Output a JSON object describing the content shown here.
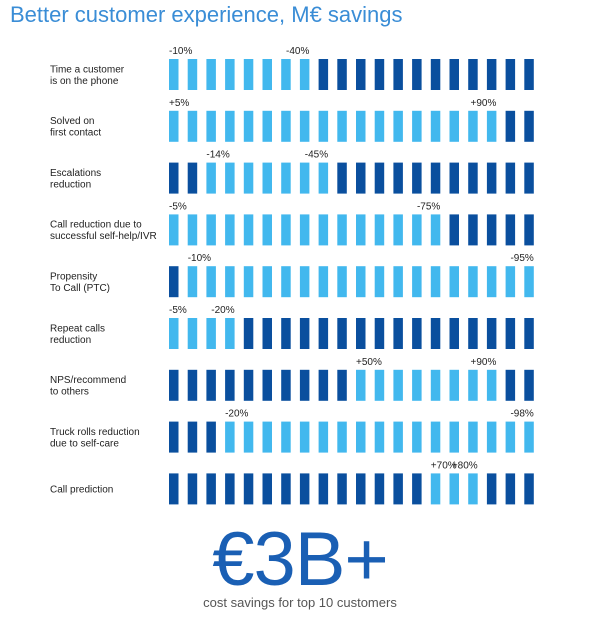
{
  "title": "Better customer experience, M€ savings",
  "highlight": {
    "value": "€3B+",
    "caption": "cost savings for top 10 customers"
  },
  "colors": {
    "dark": "#0a4f9e",
    "light": "#42b8ee",
    "label": "#222222"
  },
  "chart_data": {
    "type": "bar",
    "segments_per_row": 20,
    "rows": [
      {
        "label": [
          "Time a customer",
          "is on the phone"
        ],
        "range_labels": [
          "-10%",
          "-40%"
        ],
        "light_start": 0,
        "light_end": 8,
        "light_fraction": 0.4
      },
      {
        "label": [
          "Solved on",
          "first contact"
        ],
        "range_labels": [
          "+5%",
          "+90%"
        ],
        "light_start": 0,
        "light_end": 18,
        "light_fraction": 0.9
      },
      {
        "label": [
          "Escalations",
          "reduction"
        ],
        "range_labels": [
          "-14%",
          "-45%"
        ],
        "light_start": 2,
        "light_end": 9,
        "light_fraction": 0.35
      },
      {
        "label": [
          "Call reduction due to",
          "successful self-help/IVR"
        ],
        "range_labels": [
          "-5%",
          "-75%"
        ],
        "light_start": 0,
        "light_end": 15,
        "light_fraction": 0.75
      },
      {
        "label": [
          "Propensity",
          "To Call (PTC)"
        ],
        "range_labels": [
          "-10%",
          "-95%"
        ],
        "light_start": 1,
        "light_end": 20,
        "light_fraction": 0.95
      },
      {
        "label": [
          "Repeat calls",
          "reduction"
        ],
        "range_labels": [
          "-5%",
          "-20%"
        ],
        "light_start": 0,
        "light_end": 4,
        "light_fraction": 0.2
      },
      {
        "label": [
          "NPS/recommend",
          "to others"
        ],
        "range_labels": [
          "+50%",
          "+90%"
        ],
        "light_start": 10,
        "light_end": 18,
        "light_fraction": 0.4
      },
      {
        "label": [
          "Truck rolls reduction",
          "due to self-care"
        ],
        "range_labels": [
          "-20%",
          "-98%"
        ],
        "light_start": 3,
        "light_end": 20,
        "light_fraction": 0.85
      },
      {
        "label": [
          "Call prediction"
        ],
        "range_labels": [
          "+70%",
          "+80%"
        ],
        "light_start": 14,
        "light_end": 17,
        "light_fraction": 0.15
      }
    ]
  }
}
